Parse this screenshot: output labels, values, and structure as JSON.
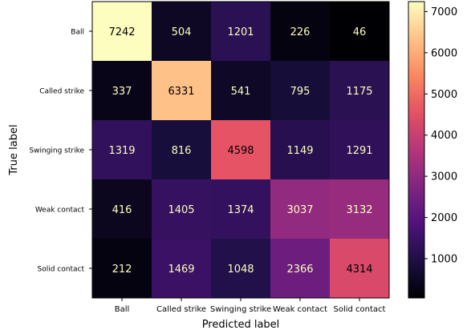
{
  "chart_data": {
    "type": "heatmap",
    "title": "",
    "xlabel": "Predicted label",
    "ylabel": "True label",
    "x_categories": [
      "Ball",
      "Called strike",
      "Swinging strike",
      "Weak contact",
      "Solid contact"
    ],
    "y_categories": [
      "Ball",
      "Called strike",
      "Swinging strike",
      "Weak contact",
      "Solid contact"
    ],
    "values": [
      [
        7242,
        504,
        1201,
        226,
        46
      ],
      [
        337,
        6331,
        541,
        795,
        1175
      ],
      [
        1319,
        816,
        4598,
        1149,
        1291
      ],
      [
        416,
        1405,
        1374,
        3037,
        3132
      ],
      [
        212,
        1469,
        1048,
        2366,
        4314
      ]
    ],
    "colormap": "magma",
    "colorbar": {
      "ticks": [
        1000,
        2000,
        3000,
        4000,
        5000,
        6000,
        7000
      ],
      "vmin": 46,
      "vmax": 7242
    },
    "grid": false
  }
}
